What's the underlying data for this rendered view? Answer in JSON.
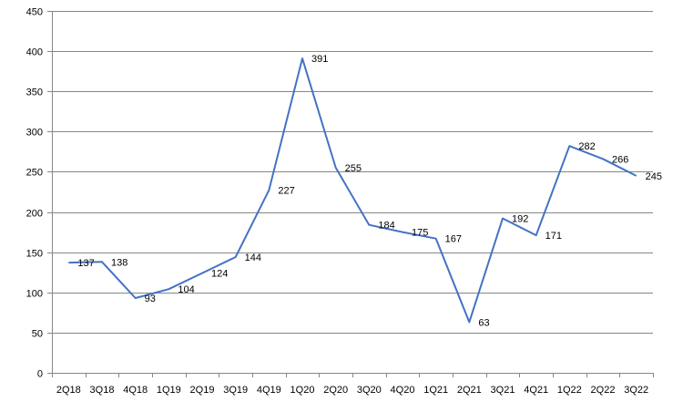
{
  "chart_data": {
    "type": "line",
    "title": "",
    "xlabel": "",
    "ylabel": "",
    "categories": [
      "2Q18",
      "3Q18",
      "4Q18",
      "1Q19",
      "2Q19",
      "3Q19",
      "4Q19",
      "1Q20",
      "2Q20",
      "3Q20",
      "4Q20",
      "1Q21",
      "2Q21",
      "3Q21",
      "4Q21",
      "1Q22",
      "2Q22",
      "3Q22"
    ],
    "series": [
      {
        "values": [
          137,
          138,
          93,
          104,
          124,
          144,
          227,
          391,
          255,
          184,
          175,
          167,
          63,
          192,
          171,
          282,
          266,
          245
        ],
        "color": "#4472C4"
      }
    ],
    "ylim": [
      0,
      450
    ],
    "yticks": [
      0,
      50,
      100,
      150,
      200,
      250,
      300,
      350,
      400,
      450
    ],
    "grid": true,
    "legend": "none",
    "gridline_color": "#868686",
    "axis_color": "#868686"
  }
}
